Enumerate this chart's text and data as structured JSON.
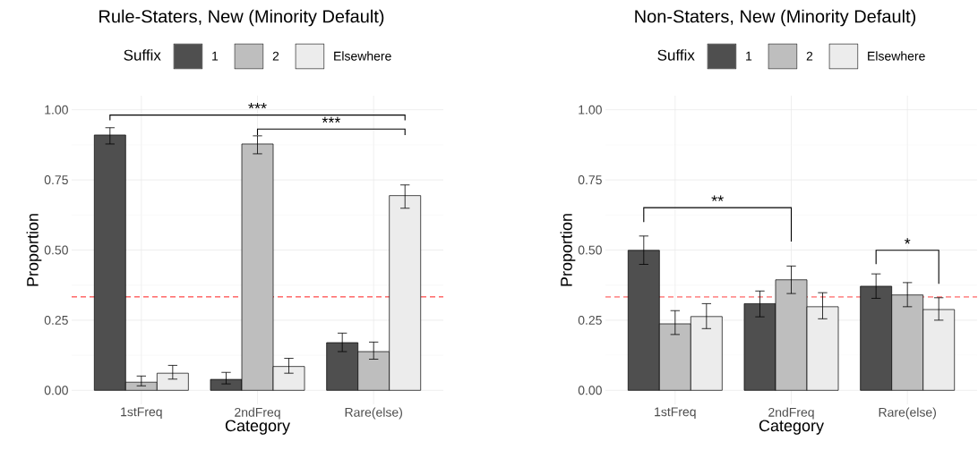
{
  "chart_data": [
    {
      "type": "bar",
      "title": "Rule-Staters, New (Minority Default)",
      "xlabel": "Category",
      "ylabel": "Proportion",
      "legend_title": "Suffix",
      "legend": "top",
      "grid": true,
      "categories": [
        "1stFreq",
        "2ndFreq",
        "Rare(else)"
      ],
      "series": [
        {
          "name": "1",
          "color": "#4f4f4f",
          "values": [
            0.91,
            0.039,
            0.17
          ],
          "errors": [
            [
              0.878,
              0.936
            ],
            [
              0.023,
              0.064
            ],
            [
              0.138,
              0.204
            ]
          ]
        },
        {
          "name": "2",
          "color": "#bebebe",
          "values": [
            0.029,
            0.878,
            0.138
          ],
          "errors": [
            [
              0.016,
              0.051
            ],
            [
              0.843,
              0.907
            ],
            [
              0.111,
              0.172
            ]
          ]
        },
        {
          "name": "Elsewhere",
          "color": "#ececec",
          "values": [
            0.061,
            0.085,
            0.694
          ],
          "errors": [
            [
              0.04,
              0.089
            ],
            [
              0.061,
              0.114
            ],
            [
              0.649,
              0.732
            ]
          ]
        }
      ],
      "ylim": [
        -0.05,
        1.05
      ],
      "yticks": [
        {
          "value": 0,
          "label": "0.00"
        },
        {
          "value": 0.25,
          "label": "0.25"
        },
        {
          "value": 0.5,
          "label": "0.50"
        },
        {
          "value": 0.75,
          "label": "0.75"
        },
        {
          "value": 1,
          "label": "1.00"
        }
      ],
      "ref_lines": [
        {
          "axis": "y",
          "value": 0.333,
          "color": "#ff0000",
          "line_style": "dashed"
        }
      ],
      "annotations": [
        "***",
        "***"
      ]
    },
    {
      "type": "bar",
      "title": "Non-Staters, New (Minority Default)",
      "xlabel": "Category",
      "ylabel": "Proportion",
      "legend_title": "Suffix",
      "legend": "top",
      "grid": true,
      "categories": [
        "1stFreq",
        "2ndFreq",
        "Rare(else)"
      ],
      "series": [
        {
          "name": "1",
          "color": "#4f4f4f",
          "values": [
            0.499,
            0.309,
            0.371
          ],
          "errors": [
            [
              0.449,
              0.55
            ],
            [
              0.262,
              0.354
            ],
            [
              0.328,
              0.415
            ]
          ]
        },
        {
          "name": "2",
          "color": "#bebebe",
          "values": [
            0.237,
            0.394,
            0.34
          ],
          "errors": [
            [
              0.199,
              0.284
            ],
            [
              0.345,
              0.443
            ],
            [
              0.298,
              0.384
            ]
          ]
        },
        {
          "name": "Elsewhere",
          "color": "#ececec",
          "values": [
            0.263,
            0.298,
            0.288
          ],
          "errors": [
            [
              0.22,
              0.309
            ],
            [
              0.255,
              0.348
            ],
            [
              0.25,
              0.33
            ]
          ]
        }
      ],
      "ylim": [
        -0.05,
        1.05
      ],
      "yticks": [
        {
          "value": 0,
          "label": "0.00"
        },
        {
          "value": 0.25,
          "label": "0.25"
        },
        {
          "value": 0.5,
          "label": "0.50"
        },
        {
          "value": 0.75,
          "label": "0.75"
        },
        {
          "value": 1,
          "label": "1.00"
        }
      ],
      "ref_lines": [
        {
          "axis": "y",
          "value": 0.333,
          "color": "#ff0000",
          "line_style": "dashed"
        }
      ],
      "annotations": [
        "**",
        "*"
      ]
    }
  ]
}
